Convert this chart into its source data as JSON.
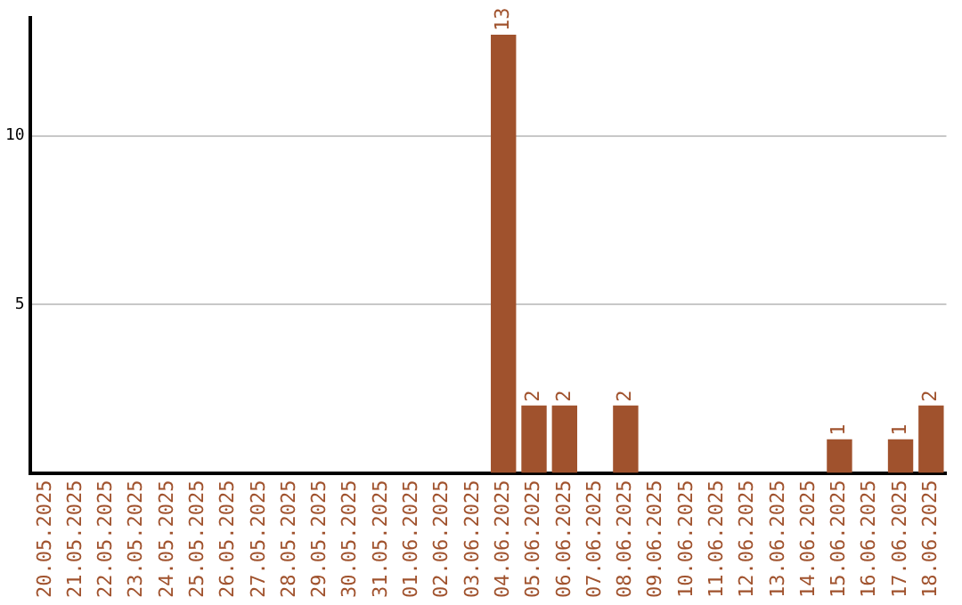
{
  "chart_data": {
    "type": "bar",
    "categories": [
      "20.05.2025",
      "21.05.2025",
      "22.05.2025",
      "23.05.2025",
      "24.05.2025",
      "25.05.2025",
      "26.05.2025",
      "27.05.2025",
      "28.05.2025",
      "29.05.2025",
      "30.05.2025",
      "31.05.2025",
      "01.06.2025",
      "02.06.2025",
      "03.06.2025",
      "04.06.2025",
      "05.06.2025",
      "06.06.2025",
      "07.06.2025",
      "08.06.2025",
      "09.06.2025",
      "10.06.2025",
      "11.06.2025",
      "12.06.2025",
      "13.06.2025",
      "14.06.2025",
      "15.06.2025",
      "16.06.2025",
      "17.06.2025",
      "18.06.2025"
    ],
    "values": [
      0,
      0,
      0,
      0,
      0,
      0,
      0,
      0,
      0,
      0,
      0,
      0,
      0,
      0,
      0,
      13,
      2,
      2,
      0,
      2,
      0,
      0,
      0,
      0,
      0,
      0,
      1,
      0,
      1,
      2
    ],
    "value_labels": [
      null,
      null,
      null,
      null,
      null,
      null,
      null,
      null,
      null,
      null,
      null,
      null,
      null,
      null,
      null,
      "13",
      "2",
      "2",
      null,
      "2",
      null,
      null,
      null,
      null,
      null,
      null,
      "1",
      null,
      "1",
      "2"
    ],
    "color": "#a0522d",
    "ylim": [
      0,
      13.5
    ],
    "yticks": [
      5,
      10
    ],
    "grid": "y",
    "legend": false
  }
}
